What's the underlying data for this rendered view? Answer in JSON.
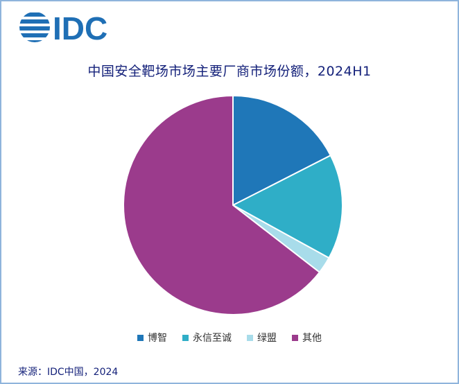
{
  "logo": {
    "text": "IDC",
    "color": "#1f6fb5"
  },
  "chart_data": {
    "type": "pie",
    "title": "中国安全靶场市场主要厂商市场份额，2024H1",
    "categories": [
      "博智",
      "永信至诚",
      "绿盟",
      "其他"
    ],
    "values": [
      17.5,
      15.5,
      2.5,
      64.5
    ],
    "colors": [
      "#1f77b8",
      "#2faec7",
      "#a8dcea",
      "#9b3b8c"
    ],
    "legend_position": "bottom"
  },
  "source": "来源：IDC中国，2024"
}
